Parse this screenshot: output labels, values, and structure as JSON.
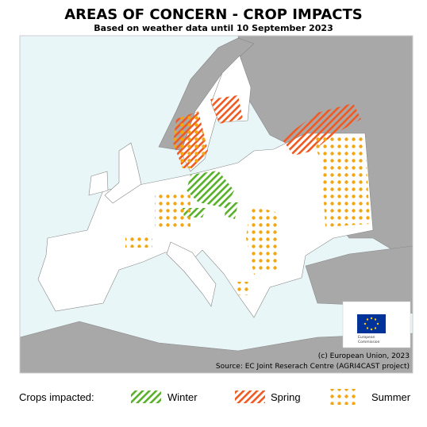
{
  "header": {
    "title": "AREAS OF CONCERN - CROP IMPACTS",
    "subtitle": "Based on weather data until 10 September 2023"
  },
  "map": {
    "logo_text": [
      "European",
      "Commission"
    ],
    "copyright": "(c) European Union, 2023",
    "source": "Source: EC Joint Reserach Centre (AGRI4CAST project)"
  },
  "legend": {
    "title": "Crops impacted:",
    "items": [
      "Winter",
      "Spring",
      "Summer"
    ]
  }
}
